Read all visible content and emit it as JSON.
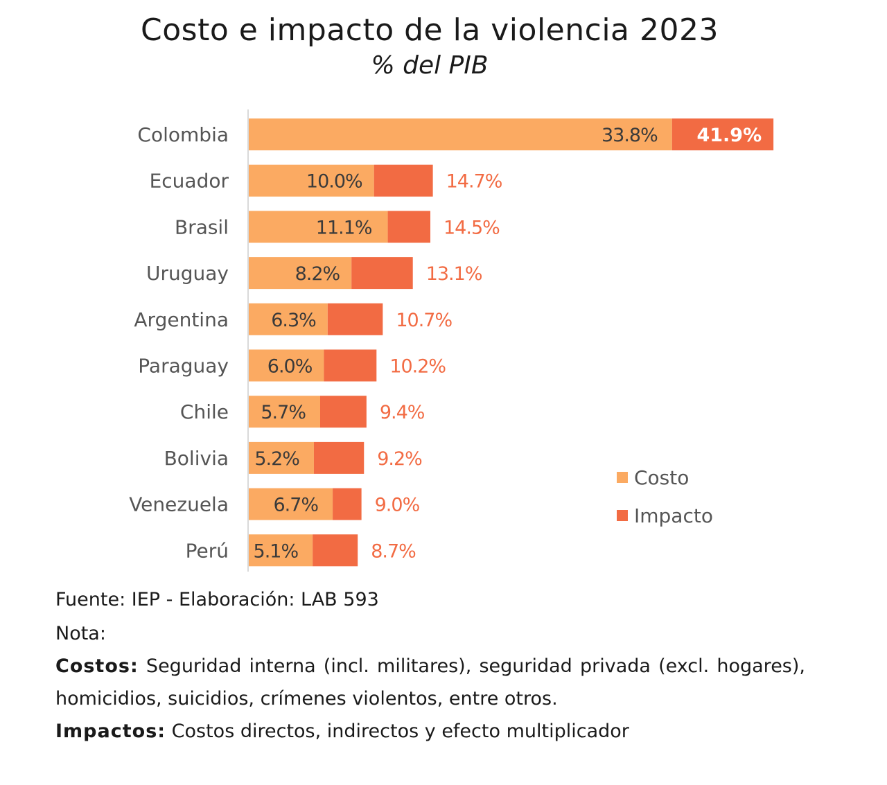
{
  "chart_data": {
    "type": "bar",
    "stacked": true,
    "orientation": "horizontal",
    "title": "Costo e impacto de la violencia 2023",
    "subtitle": "% del PIB",
    "categories": [
      "Colombia",
      "Ecuador",
      "Brasil",
      "Uruguay",
      "Argentina",
      "Paraguay",
      "Chile",
      "Bolivia",
      "Venezuela",
      "Perú"
    ],
    "series": [
      {
        "name": "Costo",
        "color": "#FBAA62",
        "values": [
          33.8,
          10.0,
          11.1,
          8.2,
          6.3,
          6.0,
          5.7,
          5.2,
          6.7,
          5.1
        ],
        "labels": [
          "33.8%",
          "10.0%",
          "11.1%",
          "8.2%",
          "6.3%",
          "6.0%",
          "5.7%",
          "5.2%",
          "6.7%",
          "5.1%"
        ]
      },
      {
        "name": "Impacto",
        "color": "#F26B43",
        "totals": [
          41.9,
          14.7,
          14.5,
          13.1,
          10.7,
          10.2,
          9.4,
          9.2,
          9.0,
          8.7
        ],
        "labels": [
          "41.9%",
          "14.7%",
          "14.5%",
          "13.1%",
          "10.7%",
          "10.2%",
          "9.4%",
          "9.2%",
          "9.0%",
          "8.7%"
        ]
      }
    ],
    "legend_position": "right",
    "grid": false
  },
  "notes": {
    "source": "Fuente: IEP - Elaboración: LAB 593",
    "nota": "Nota:",
    "costos_label": "Costos:",
    "costos_text": " Seguridad interna (incl. militares), seguridad privada (excl. hogares), homicidios, suicidios, crímenes violentos, entre otros.",
    "impactos_label": "Impactos:",
    "impactos_text": " Costos directos, indirectos y efecto multiplicador"
  }
}
